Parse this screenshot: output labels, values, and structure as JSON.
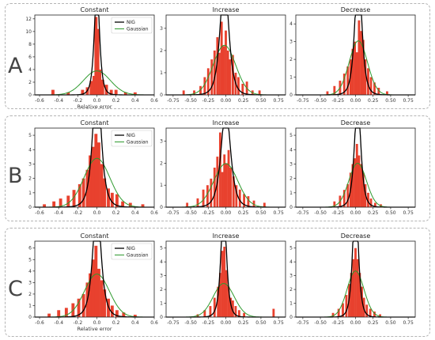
{
  "legend": {
    "nig": "NIG",
    "gaussian": "Gaussian"
  },
  "colors": {
    "histogram": "#e8412e",
    "nig": "#000000",
    "gaussian": "#2e9a2e"
  },
  "chart_data": [
    {
      "row": "A",
      "type": "histogram",
      "title": "Constant",
      "xlabel": "Relative error",
      "xlim": [
        -0.65,
        0.6
      ],
      "ylim": [
        0,
        12.6
      ],
      "xticks": [
        "-0.6",
        "-0.4",
        "-0.2",
        "0.0",
        "0.2",
        "0.4",
        "0.6"
      ],
      "yticks": [
        "0",
        "2",
        "4",
        "6",
        "8",
        "10",
        "12"
      ],
      "legend": [
        "NIG",
        "Gaussian"
      ],
      "legend_position": "top-right",
      "nig": {
        "mu": 0.0,
        "alpha": 22,
        "delta": 0.038
      },
      "gaussian": {
        "mu": 0.0,
        "sigma": 0.14
      },
      "bins": [
        [
          -0.46,
          0.8
        ],
        [
          -0.3,
          0.4
        ],
        [
          -0.15,
          0.8
        ],
        [
          -0.1,
          1.2
        ],
        [
          -0.06,
          2.2
        ],
        [
          -0.03,
          3.0
        ],
        [
          -0.01,
          12.3
        ],
        [
          0.01,
          10.4
        ],
        [
          0.03,
          4.0
        ],
        [
          0.06,
          2.4
        ],
        [
          0.1,
          1.6
        ],
        [
          0.15,
          0.8
        ],
        [
          0.2,
          0.8
        ],
        [
          0.3,
          0.4
        ],
        [
          0.4,
          0.4
        ]
      ]
    },
    {
      "row": "A",
      "type": "histogram",
      "title": "Increase",
      "xlabel": "",
      "xlim": [
        -0.85,
        0.85
      ],
      "ylim": [
        0,
        3.6
      ],
      "xticks": [
        "-0.75",
        "-0.50",
        "-0.25",
        "0.00",
        "0.25",
        "0.50",
        "0.75"
      ],
      "yticks": [
        "0",
        "1",
        "2",
        "3"
      ],
      "nig": {
        "mu": -0.02,
        "alpha": 12,
        "delta": 0.09
      },
      "gaussian": {
        "mu": -0.02,
        "sigma": 0.16
      },
      "bins": [
        [
          -0.6,
          0.2
        ],
        [
          -0.45,
          0.2
        ],
        [
          -0.36,
          0.4
        ],
        [
          -0.3,
          0.8
        ],
        [
          -0.25,
          1.2
        ],
        [
          -0.2,
          1.6
        ],
        [
          -0.16,
          2.0
        ],
        [
          -0.12,
          2.6
        ],
        [
          -0.09,
          1.9
        ],
        [
          -0.06,
          3.3
        ],
        [
          -0.03,
          2.2
        ],
        [
          0.0,
          2.9
        ],
        [
          0.03,
          2.0
        ],
        [
          0.06,
          1.6
        ],
        [
          0.1,
          1.8
        ],
        [
          0.14,
          1.0
        ],
        [
          0.18,
          0.8
        ],
        [
          0.24,
          0.5
        ],
        [
          0.3,
          0.6
        ],
        [
          0.38,
          0.2
        ],
        [
          0.48,
          0.2
        ]
      ]
    },
    {
      "row": "A",
      "type": "histogram",
      "title": "Decrease",
      "xlabel": "",
      "xlim": [
        -0.85,
        0.85
      ],
      "ylim": [
        0,
        4.5
      ],
      "xticks": [
        "-0.75",
        "-0.50",
        "-0.25",
        "0.00",
        "0.25",
        "0.50",
        "0.75"
      ],
      "yticks": [
        "0",
        "1",
        "2",
        "3",
        "4"
      ],
      "nig": {
        "mu": 0.04,
        "alpha": 14,
        "delta": 0.07
      },
      "gaussian": {
        "mu": 0.04,
        "sigma": 0.13
      },
      "bins": [
        [
          -0.4,
          0.2
        ],
        [
          -0.3,
          0.5
        ],
        [
          -0.22,
          0.8
        ],
        [
          -0.16,
          1.2
        ],
        [
          -0.11,
          1.6
        ],
        [
          -0.07,
          2.0
        ],
        [
          -0.04,
          2.6
        ],
        [
          -0.01,
          3.0
        ],
        [
          0.02,
          2.4
        ],
        [
          0.05,
          4.2
        ],
        [
          0.08,
          3.6
        ],
        [
          0.11,
          3.1
        ],
        [
          0.14,
          2.0
        ],
        [
          0.18,
          1.5
        ],
        [
          0.22,
          1.0
        ],
        [
          0.27,
          0.7
        ],
        [
          0.33,
          0.4
        ],
        [
          0.45,
          0.2
        ]
      ]
    },
    {
      "row": "B",
      "type": "histogram",
      "title": "Constant",
      "xlabel": "",
      "xlim": [
        -0.65,
        0.6
      ],
      "ylim": [
        0,
        5.5
      ],
      "xticks": [
        "-0.6",
        "-0.4",
        "-0.2",
        "0.0",
        "0.2",
        "0.4",
        "0.6"
      ],
      "yticks": [
        "0",
        "1",
        "2",
        "3",
        "4",
        "5"
      ],
      "legend": [
        "NIG",
        "Gaussian"
      ],
      "legend_position": "top-right",
      "nig": {
        "mu": 0.0,
        "alpha": 14,
        "delta": 0.06
      },
      "gaussian": {
        "mu": 0.0,
        "sigma": 0.135
      },
      "bins": [
        [
          -0.55,
          0.2
        ],
        [
          -0.45,
          0.4
        ],
        [
          -0.38,
          0.6
        ],
        [
          -0.3,
          0.8
        ],
        [
          -0.24,
          1.2
        ],
        [
          -0.18,
          1.6
        ],
        [
          -0.14,
          2.0
        ],
        [
          -0.1,
          2.6
        ],
        [
          -0.07,
          3.6
        ],
        [
          -0.04,
          4.2
        ],
        [
          -0.01,
          5.1
        ],
        [
          0.02,
          4.5
        ],
        [
          0.05,
          3.0
        ],
        [
          0.08,
          2.0
        ],
        [
          0.12,
          1.3
        ],
        [
          0.16,
          1.0
        ],
        [
          0.21,
          0.9
        ],
        [
          0.27,
          0.4
        ],
        [
          0.35,
          0.3
        ],
        [
          0.48,
          0.2
        ]
      ]
    },
    {
      "row": "B",
      "type": "histogram",
      "title": "Increase",
      "xlabel": "",
      "xlim": [
        -0.85,
        0.85
      ],
      "ylim": [
        0,
        3.6
      ],
      "xticks": [
        "-0.75",
        "-0.50",
        "-0.25",
        "0.00",
        "0.25",
        "0.50",
        "0.75"
      ],
      "yticks": [
        "0",
        "1",
        "2",
        "3"
      ],
      "nig": {
        "mu": 0.0,
        "alpha": 11,
        "delta": 0.1
      },
      "gaussian": {
        "mu": 0.0,
        "sigma": 0.17
      },
      "bins": [
        [
          -0.55,
          0.2
        ],
        [
          -0.4,
          0.4
        ],
        [
          -0.32,
          0.8
        ],
        [
          -0.26,
          1.0
        ],
        [
          -0.21,
          1.3
        ],
        [
          -0.16,
          1.8
        ],
        [
          -0.12,
          2.3
        ],
        [
          -0.08,
          3.4
        ],
        [
          -0.05,
          1.6
        ],
        [
          -0.02,
          2.4
        ],
        [
          0.01,
          2.0
        ],
        [
          0.04,
          2.6
        ],
        [
          0.07,
          1.8
        ],
        [
          0.11,
          1.4
        ],
        [
          0.15,
          1.0
        ],
        [
          0.2,
          0.8
        ],
        [
          0.26,
          0.6
        ],
        [
          0.32,
          0.5
        ],
        [
          0.4,
          0.3
        ],
        [
          0.55,
          0.2
        ]
      ]
    },
    {
      "row": "B",
      "type": "histogram",
      "title": "Decrease",
      "xlabel": "",
      "xlim": [
        -0.85,
        0.85
      ],
      "ylim": [
        0,
        5.5
      ],
      "xticks": [
        "-0.75",
        "-0.50",
        "-0.25",
        "0.00",
        "0.25",
        "0.50",
        "0.75"
      ],
      "yticks": [
        "0",
        "1",
        "2",
        "3",
        "4",
        "5"
      ],
      "nig": {
        "mu": 0.03,
        "alpha": 15,
        "delta": 0.065
      },
      "gaussian": {
        "mu": 0.03,
        "sigma": 0.125
      },
      "bins": [
        [
          -0.3,
          0.4
        ],
        [
          -0.22,
          0.8
        ],
        [
          -0.16,
          1.2
        ],
        [
          -0.11,
          1.6
        ],
        [
          -0.07,
          2.4
        ],
        [
          -0.04,
          3.0
        ],
        [
          -0.01,
          3.4
        ],
        [
          0.02,
          4.4
        ],
        [
          0.05,
          3.6
        ],
        [
          0.08,
          3.0
        ],
        [
          0.11,
          2.4
        ],
        [
          0.14,
          1.6
        ],
        [
          0.18,
          1.0
        ],
        [
          0.22,
          0.6
        ],
        [
          0.28,
          0.3
        ],
        [
          0.36,
          0.2
        ]
      ]
    },
    {
      "row": "C",
      "type": "histogram",
      "title": "Constant",
      "xlabel": "Relative error",
      "xlim": [
        -0.65,
        0.6
      ],
      "ylim": [
        0,
        6.6
      ],
      "xticks": [
        "-0.6",
        "-0.4",
        "-0.2",
        "0.0",
        "0.2",
        "0.4",
        "0.6"
      ],
      "yticks": [
        "0",
        "1",
        "2",
        "3",
        "4",
        "5",
        "6"
      ],
      "legend": [
        "NIG",
        "Gaussian"
      ],
      "legend_position": "top-right",
      "nig": {
        "mu": 0.0,
        "alpha": 14,
        "delta": 0.06
      },
      "gaussian": {
        "mu": 0.0,
        "sigma": 0.13
      },
      "bins": [
        [
          -0.5,
          0.3
        ],
        [
          -0.4,
          0.6
        ],
        [
          -0.32,
          0.8
        ],
        [
          -0.25,
          1.2
        ],
        [
          -0.19,
          1.6
        ],
        [
          -0.14,
          2.0
        ],
        [
          -0.1,
          3.0
        ],
        [
          -0.07,
          3.8
        ],
        [
          -0.04,
          5.0
        ],
        [
          -0.01,
          6.2
        ],
        [
          0.02,
          4.2
        ],
        [
          0.05,
          3.2
        ],
        [
          0.08,
          2.4
        ],
        [
          0.12,
          1.6
        ],
        [
          0.16,
          1.0
        ],
        [
          0.21,
          0.6
        ],
        [
          0.28,
          0.4
        ],
        [
          0.4,
          0.2
        ]
      ]
    },
    {
      "row": "C",
      "type": "histogram",
      "title": "Increase",
      "xlabel": "",
      "xlim": [
        -0.85,
        0.85
      ],
      "ylim": [
        0,
        5.5
      ],
      "xticks": [
        "-0.75",
        "-0.50",
        "-0.25",
        "0.00",
        "0.25",
        "0.50",
        "0.75"
      ],
      "yticks": [
        "0",
        "1",
        "2",
        "3",
        "4",
        "5"
      ],
      "nig": {
        "mu": -0.03,
        "alpha": 16,
        "delta": 0.055
      },
      "gaussian": {
        "mu": -0.03,
        "sigma": 0.15
      },
      "bins": [
        [
          -0.4,
          0.2
        ],
        [
          -0.3,
          0.5
        ],
        [
          -0.22,
          0.8
        ],
        [
          -0.16,
          1.4
        ],
        [
          -0.11,
          2.2
        ],
        [
          -0.08,
          3.2
        ],
        [
          -0.05,
          4.8
        ],
        [
          -0.02,
          5.1
        ],
        [
          0.01,
          3.4
        ],
        [
          0.04,
          2.2
        ],
        [
          0.07,
          1.4
        ],
        [
          0.1,
          1.2
        ],
        [
          0.14,
          0.8
        ],
        [
          0.19,
          0.5
        ],
        [
          0.26,
          0.3
        ],
        [
          0.68,
          0.6
        ]
      ]
    },
    {
      "row": "C",
      "type": "histogram",
      "title": "Decrease",
      "xlabel": "",
      "xlim": [
        -0.85,
        0.85
      ],
      "ylim": [
        0,
        5.5
      ],
      "xticks": [
        "-0.75",
        "-0.50",
        "-0.25",
        "0.00",
        "0.25",
        "0.50",
        "0.75"
      ],
      "yticks": [
        "0",
        "1",
        "2",
        "3",
        "4",
        "5"
      ],
      "nig": {
        "mu": 0.0,
        "alpha": 17,
        "delta": 0.055
      },
      "gaussian": {
        "mu": 0.0,
        "sigma": 0.12
      },
      "bins": [
        [
          -0.32,
          0.3
        ],
        [
          -0.24,
          0.6
        ],
        [
          -0.18,
          1.0
        ],
        [
          -0.13,
          1.6
        ],
        [
          -0.09,
          2.4
        ],
        [
          -0.06,
          3.2
        ],
        [
          -0.03,
          4.2
        ],
        [
          0.0,
          5.0
        ],
        [
          0.03,
          4.2
        ],
        [
          0.06,
          3.2
        ],
        [
          0.09,
          2.2
        ],
        [
          0.12,
          1.4
        ],
        [
          0.16,
          0.9
        ],
        [
          0.21,
          0.6
        ],
        [
          0.27,
          0.4
        ],
        [
          0.35,
          0.2
        ]
      ]
    }
  ],
  "rows": [
    {
      "label": "A"
    },
    {
      "label": "B"
    },
    {
      "label": "C"
    }
  ]
}
